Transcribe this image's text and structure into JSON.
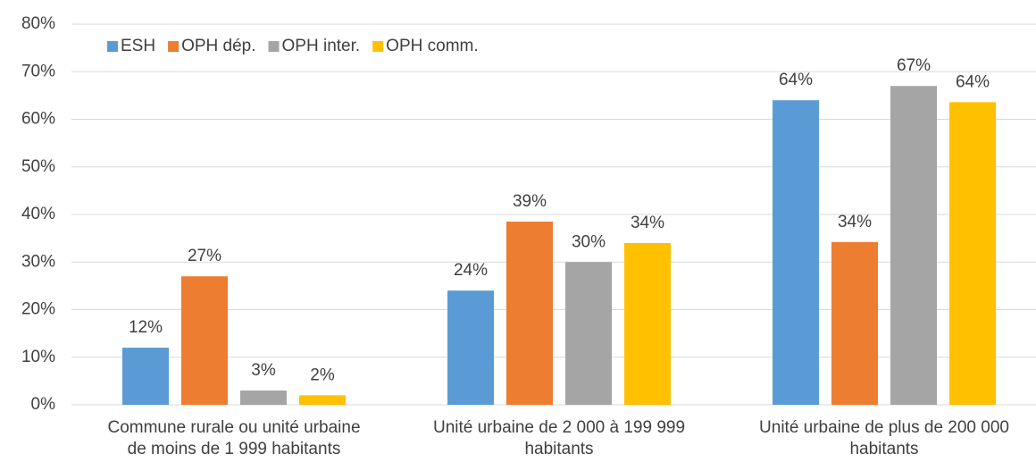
{
  "chart_data": {
    "type": "bar",
    "categories": [
      [
        "Commune rurale ou unité urbaine",
        "de moins de 1 999 habitants"
      ],
      [
        "Unité urbaine de 2 000 à 199 999",
        "habitants"
      ],
      [
        "Unité urbaine de plus de 200 000",
        "habitants"
      ]
    ],
    "series": [
      {
        "name": "ESH",
        "color": "#5b9bd5",
        "values": [
          12,
          24,
          64
        ],
        "value_labels": [
          "12%",
          "24%",
          "64%"
        ]
      },
      {
        "name": "OPH dép.",
        "color": "#ed7d31",
        "values": [
          27,
          38.5,
          34.2
        ],
        "value_labels": [
          "27%",
          "39%",
          "34%"
        ]
      },
      {
        "name": "OPH inter.",
        "color": "#a5a5a5",
        "values": [
          3,
          30,
          67
        ],
        "value_labels": [
          "3%",
          "30%",
          "67%"
        ]
      },
      {
        "name": "OPH comm.",
        "color": "#ffc000",
        "values": [
          2,
          34,
          63.6
        ],
        "value_labels": [
          "2%",
          "34%",
          "64%"
        ]
      }
    ],
    "ylim": [
      0,
      80
    ],
    "yticks": [
      {
        "value": 0,
        "label": "0%"
      },
      {
        "value": 10,
        "label": "10%"
      },
      {
        "value": 20,
        "label": "20%"
      },
      {
        "value": 30,
        "label": "30%"
      },
      {
        "value": 40,
        "label": "40%"
      },
      {
        "value": 50,
        "label": "50%"
      },
      {
        "value": 60,
        "label": "60%"
      },
      {
        "value": 70,
        "label": "70%"
      },
      {
        "value": 80,
        "label": "80%"
      }
    ],
    "grid": true,
    "legend": "top-left"
  }
}
